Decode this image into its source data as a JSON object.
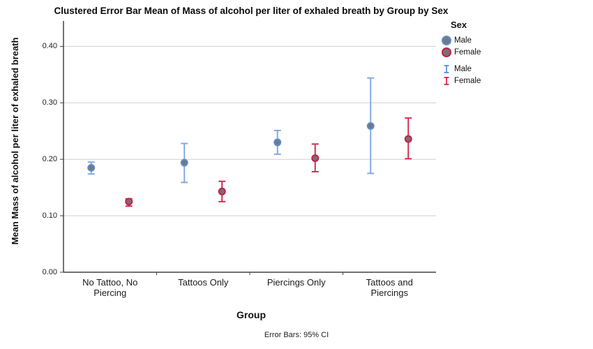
{
  "chart_data": {
    "type": "errorbar",
    "title": "Clustered Error Bar Mean of Mass of alcohol per liter of exhaled breath by Group by Sex",
    "xlabel": "Group",
    "ylabel": "Mean Mass of alcohol per liter of exhaled breath",
    "footnote": "Error Bars: 95% CI",
    "categories": [
      "No Tattoo, No Piercing",
      "Tattoos Only",
      "Piercings Only",
      "Tattoos and Piercings"
    ],
    "category_label_lines": [
      [
        "No Tattoo, No",
        "Piercing"
      ],
      [
        "Tattoos Only"
      ],
      [
        "Piercings Only"
      ],
      [
        "Tattoos and",
        "Piercings"
      ]
    ],
    "yticks": [
      0.0,
      0.1,
      0.2,
      0.3,
      0.4
    ],
    "ytick_labels": [
      "0.00",
      "0.10",
      "0.20",
      "0.30",
      "0.40"
    ],
    "ylim": [
      0,
      0.445
    ],
    "grid": "horizontal-only",
    "legend_position": "top-right",
    "colors": {
      "male": "#84A9E2",
      "male_marker_stroke": "#5F8ED2",
      "female": "#D22E55",
      "female_marker_stroke": "#C51F48",
      "marker_fill": "#73787E",
      "gridline": "#cfcfcf",
      "axis": "#444444"
    },
    "series": [
      {
        "name": "Male",
        "line_color": "#84A9E2",
        "marker_stroke": "#5F8ED2",
        "marker_fill": "#73787E",
        "means": [
          0.185,
          0.194,
          0.23,
          0.259
        ],
        "ci_low": [
          0.174,
          0.159,
          0.209,
          0.175
        ],
        "ci_high": [
          0.195,
          0.228,
          0.251,
          0.344
        ]
      },
      {
        "name": "Female",
        "line_color": "#D22E55",
        "marker_stroke": "#C51F48",
        "marker_fill": "#7A6F73",
        "means": [
          0.125,
          0.143,
          0.202,
          0.236
        ],
        "ci_low": [
          0.117,
          0.125,
          0.178,
          0.201
        ],
        "ci_high": [
          0.13,
          0.161,
          0.227,
          0.273
        ]
      }
    ],
    "legend": {
      "title": "Sex",
      "marker_entries": [
        "Male",
        "Female"
      ],
      "errorbar_entries": [
        "Male",
        "Female"
      ]
    }
  }
}
